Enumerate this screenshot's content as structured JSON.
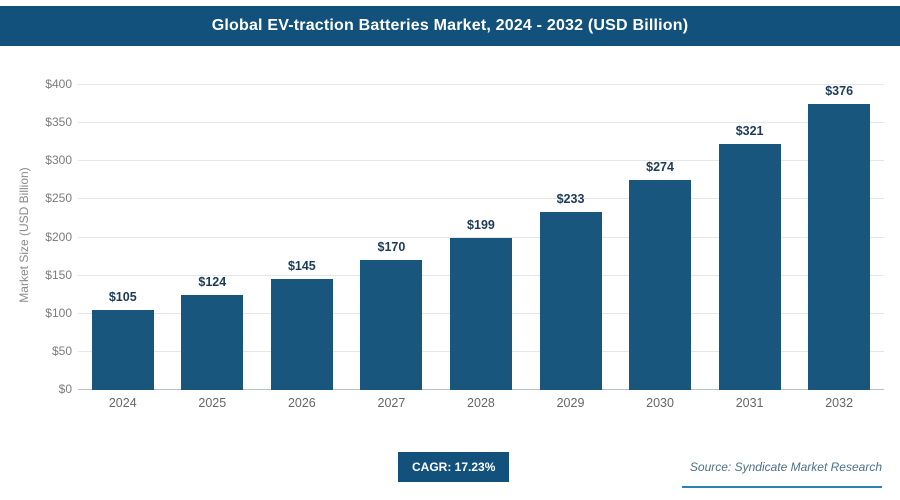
{
  "header": {
    "title": "Global EV-traction Batteries Market, 2024 - 2032 (USD Billion)"
  },
  "chart_data": {
    "type": "bar",
    "title": "Global EV-traction Batteries Market, 2024 - 2032 (USD Billion)",
    "categories": [
      "2024",
      "2025",
      "2026",
      "2027",
      "2028",
      "2029",
      "2030",
      "2031",
      "2032"
    ],
    "values": [
      105,
      124,
      145,
      170,
      199,
      233,
      274,
      321,
      376
    ],
    "value_labels": [
      "$105",
      "$124",
      "$145",
      "$170",
      "$199",
      "$233",
      "$274",
      "$321",
      "$376"
    ],
    "xlabel": "",
    "ylabel": "Market Size (USD Billion)",
    "ylim": [
      0,
      400
    ],
    "ytick_step": 50,
    "ytick_labels": [
      "$0",
      "$50",
      "$100",
      "$150",
      "$200",
      "$250",
      "$300",
      "$350",
      "$400"
    ],
    "grid": true,
    "legend": "none",
    "bar_color": "#19567e",
    "header_color": "#11517c"
  },
  "footer": {
    "cagr_label": "CAGR: 17.23%",
    "source": "Source: Syndicate Market Research"
  }
}
